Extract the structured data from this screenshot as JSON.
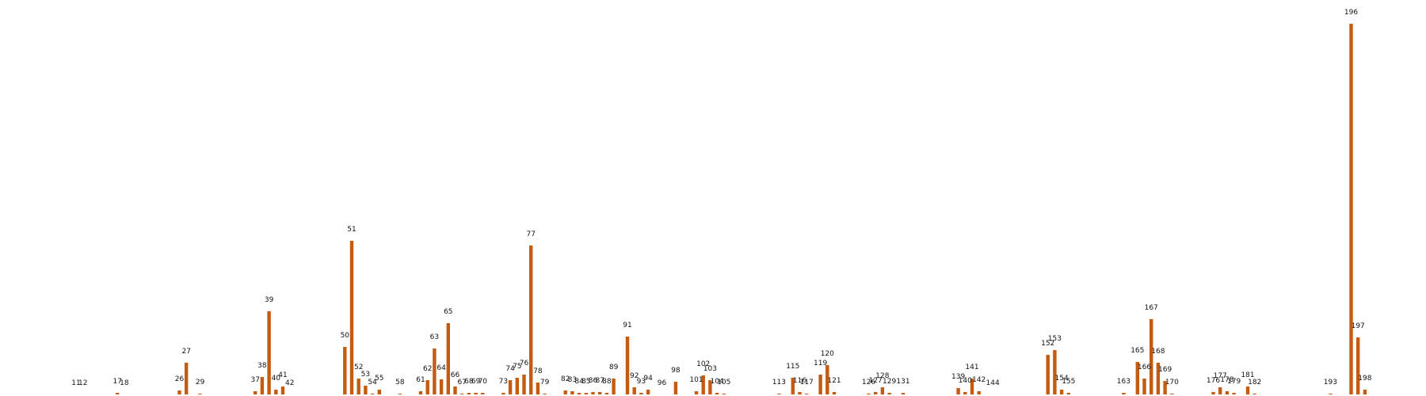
{
  "chart_data": {
    "type": "bar",
    "title": "",
    "xlabel": "",
    "ylabel": "",
    "bar_color": "#c55a11",
    "grid": false,
    "legend": "none",
    "x_range": [
      0,
      205
    ],
    "ylim": [
      0,
      490
    ],
    "x": [
      11,
      12,
      17,
      18,
      26,
      27,
      29,
      37,
      38,
      39,
      40,
      41,
      42,
      50,
      51,
      52,
      53,
      54,
      55,
      58,
      61,
      62,
      63,
      64,
      65,
      66,
      67,
      68,
      69,
      70,
      73,
      74,
      75,
      76,
      77,
      78,
      79,
      82,
      83,
      84,
      85,
      86,
      87,
      88,
      89,
      91,
      92,
      93,
      94,
      96,
      98,
      101,
      102,
      103,
      104,
      105,
      113,
      115,
      116,
      117,
      119,
      120,
      121,
      126,
      127,
      128,
      129,
      131,
      139,
      140,
      141,
      142,
      144,
      152,
      153,
      154,
      155,
      163,
      165,
      166,
      167,
      168,
      169,
      170,
      176,
      177,
      178,
      179,
      181,
      182,
      193,
      196,
      197,
      198
    ],
    "labels": [
      "11",
      "12",
      "17",
      "18",
      "26",
      "27",
      "29",
      "37",
      "38",
      "39",
      "40",
      "41",
      "42",
      "50",
      "51",
      "52",
      "53",
      "54",
      "55",
      "58",
      "61",
      "62",
      "63",
      "64",
      "65",
      "66",
      "67",
      "68",
      "69",
      "70",
      "73",
      "74",
      "75",
      "76",
      "77",
      "78",
      "79",
      "82",
      "83",
      "84",
      "85",
      "86",
      "87",
      "88",
      "89",
      "91",
      "92",
      "93",
      "94",
      "96",
      "98",
      "101",
      "102",
      "103",
      "104",
      "105",
      "113",
      "115",
      "116",
      "117",
      "119",
      "120",
      "121",
      "126",
      "127",
      "128",
      "129",
      "131",
      "139",
      "140",
      "141",
      "142",
      "144",
      "152",
      "153",
      "154",
      "155",
      "163",
      "165",
      "166",
      "167",
      "168",
      "169",
      "170",
      "176",
      "177",
      "178",
      "179",
      "181",
      "182",
      "193",
      "196",
      "197",
      "198"
    ],
    "values": [
      0,
      0,
      2,
      0,
      5,
      40,
      1,
      4,
      22,
      105,
      6,
      10,
      0,
      60,
      194,
      20,
      11,
      1,
      6,
      1,
      4,
      18,
      58,
      19,
      90,
      10,
      1,
      2,
      2,
      2,
      2,
      18,
      21,
      25,
      188,
      15,
      1,
      5,
      4,
      2,
      2,
      3,
      3,
      2,
      20,
      73,
      9,
      2,
      6,
      0,
      16,
      4,
      24,
      18,
      2,
      1,
      1,
      21,
      3,
      1,
      25,
      37,
      3,
      1,
      3,
      9,
      2,
      2,
      8,
      3,
      20,
      4,
      0,
      50,
      56,
      6,
      2,
      2,
      41,
      20,
      95,
      40,
      17,
      1,
      3,
      9,
      4,
      2,
      10,
      1,
      1,
      468,
      72,
      6
    ]
  }
}
